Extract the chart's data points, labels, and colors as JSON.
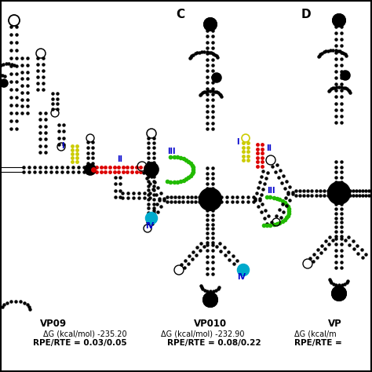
{
  "panel_C_label": "C",
  "panel_D_label": "D",
  "vp09_name": "VP09",
  "vp010_name": "VP010",
  "vp09_dG": "ΔG (kcal/mol) -235.20",
  "vp010_dG": "ΔG (kcal/mol) -232.90",
  "vp09_rpe": "RPE/RTE = 0.03/0.05",
  "vp010_rpe": "RPE/RTE = 0.08/0.22",
  "vp_partial_name": "VP",
  "vp_partial_dG": "ΔG (kcal/m",
  "vp_partial_rpe": "RPE/RTE =",
  "bg_color": "#ffffff",
  "black": "#000000",
  "yellow": "#cccc00",
  "red": "#dd0000",
  "green": "#22bb00",
  "cyan": "#00aacc",
  "blue": "#0000cc",
  "border_color": "#000000"
}
